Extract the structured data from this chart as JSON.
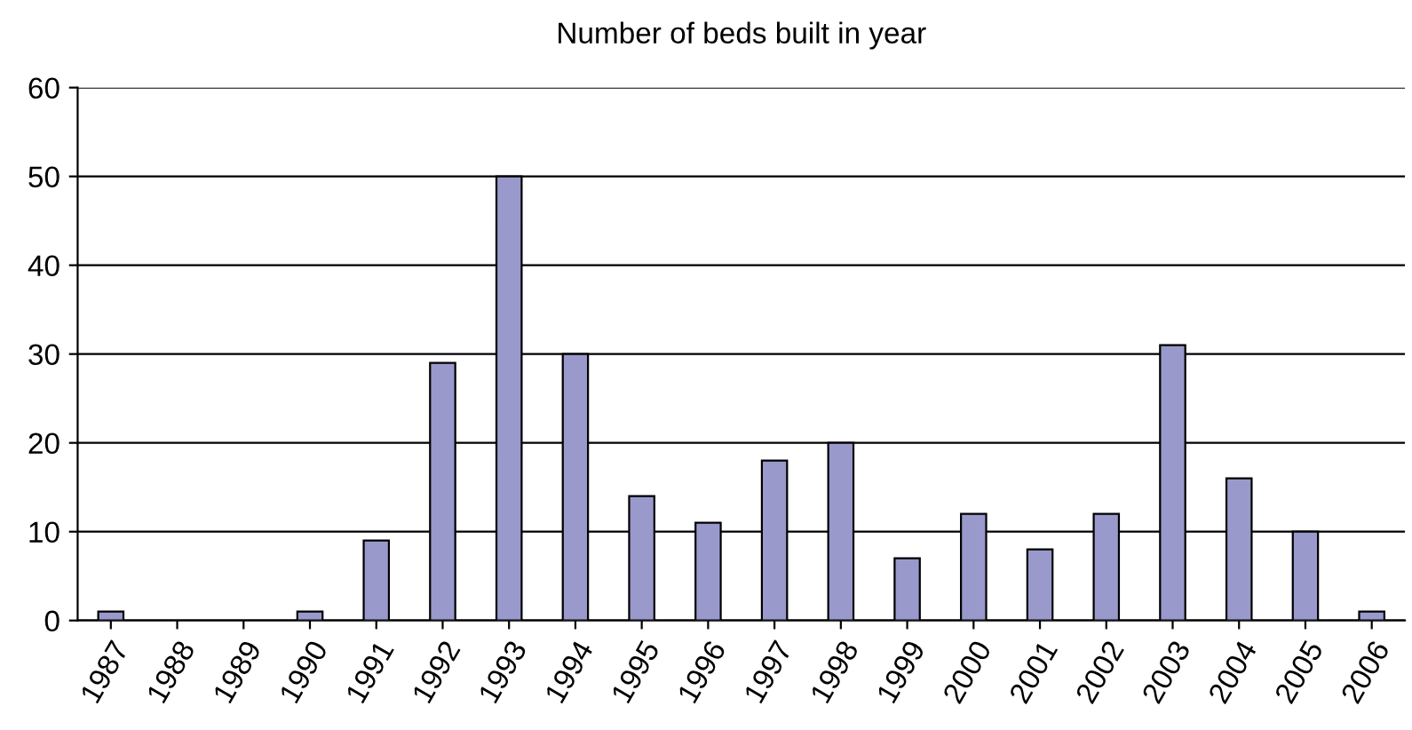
{
  "chart_data": {
    "type": "bar",
    "title": "Number of beds built in year",
    "categories": [
      "1987",
      "1988",
      "1989",
      "1990",
      "1991",
      "1992",
      "1993",
      "1994",
      "1995",
      "1996",
      "1997",
      "1998",
      "1999",
      "2000",
      "2001",
      "2002",
      "2003",
      "2004",
      "2005",
      "2006"
    ],
    "values": [
      1,
      0,
      0,
      1,
      9,
      29,
      50,
      30,
      14,
      11,
      18,
      20,
      7,
      12,
      8,
      12,
      31,
      16,
      10,
      1
    ],
    "color": "#9999cc",
    "ylim": [
      0,
      60
    ],
    "yticks": [
      0,
      10,
      20,
      30,
      40,
      50,
      60
    ],
    "grid": "y",
    "legend": false
  }
}
